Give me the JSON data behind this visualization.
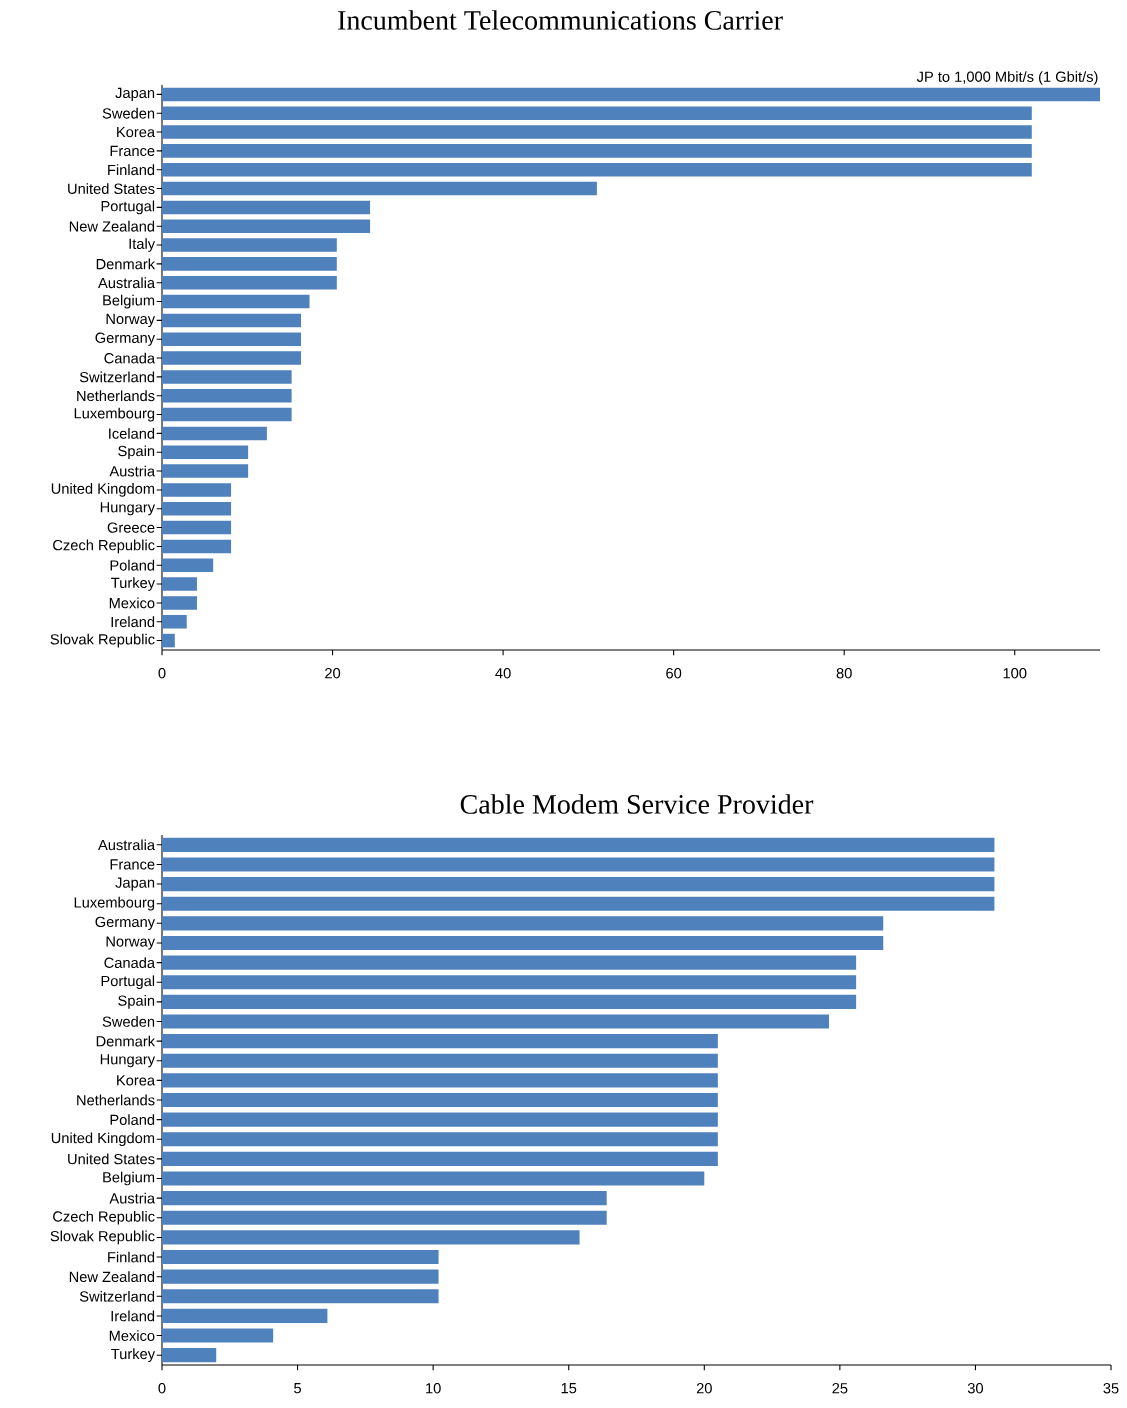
{
  "chart_data": [
    {
      "type": "bar",
      "orientation": "horizontal",
      "title": "Incumbent Telecommunications Carrier",
      "color": "#4f81bd",
      "categories": [
        "Japan",
        "Sweden",
        "Korea",
        "France",
        "Finland",
        "United States",
        "Portugal",
        "New Zealand",
        "Italy",
        "Denmark",
        "Australia",
        "Belgium",
        "Norway",
        "Germany",
        "Canada",
        "Switzerland",
        "Netherlands",
        "Luxembourg",
        "Iceland",
        "Spain",
        "Austria",
        "United Kingdom",
        "Hungary",
        "Greece",
        "Czech Republic",
        "Poland",
        "Turkey",
        "Mexico",
        "Ireland",
        "Slovak Republic"
      ],
      "values": [
        110,
        102,
        102,
        102,
        102,
        51,
        24.4,
        24.4,
        20.5,
        20.5,
        20.5,
        17.3,
        16.3,
        16.3,
        16.3,
        15.2,
        15.2,
        15.2,
        12.3,
        10.1,
        10.1,
        8.1,
        8.1,
        8.1,
        8.1,
        6,
        4.1,
        4.1,
        2.9,
        1.5
      ],
      "xlim": [
        0,
        110
      ],
      "xticks": [
        0,
        20,
        40,
        60,
        80,
        100
      ],
      "annotations": [
        {
          "text": "JP  to 1,000 Mbit/s (1 Gbit/s)",
          "x": 110,
          "y": "Japan"
        }
      ]
    },
    {
      "type": "bar",
      "orientation": "horizontal",
      "title": "Cable Modem Service Provider",
      "color": "#4f81bd",
      "categories": [
        "Australia",
        "France",
        "Japan",
        "Luxembourg",
        "Germany",
        "Norway",
        "Canada",
        "Portugal",
        "Spain",
        "Sweden",
        "Denmark",
        "Hungary",
        "Korea",
        "Netherlands",
        "Poland",
        "United Kingdom",
        "United States",
        "Belgium",
        "Austria",
        "Czech Republic",
        "Slovak Republic",
        "Finland",
        "New Zealand",
        "Switzerland",
        "Ireland",
        "Mexico",
        "Turkey"
      ],
      "values": [
        30.7,
        30.7,
        30.7,
        30.7,
        26.6,
        26.6,
        25.6,
        25.6,
        25.6,
        24.6,
        20.5,
        20.5,
        20.5,
        20.5,
        20.5,
        20.5,
        20.5,
        20.0,
        16.4,
        16.4,
        15.4,
        10.2,
        10.2,
        10.2,
        6.1,
        4.1,
        2.0
      ],
      "xlim": [
        0,
        35
      ],
      "xticks": [
        0,
        5,
        10,
        15,
        20,
        25,
        30,
        35
      ]
    }
  ]
}
